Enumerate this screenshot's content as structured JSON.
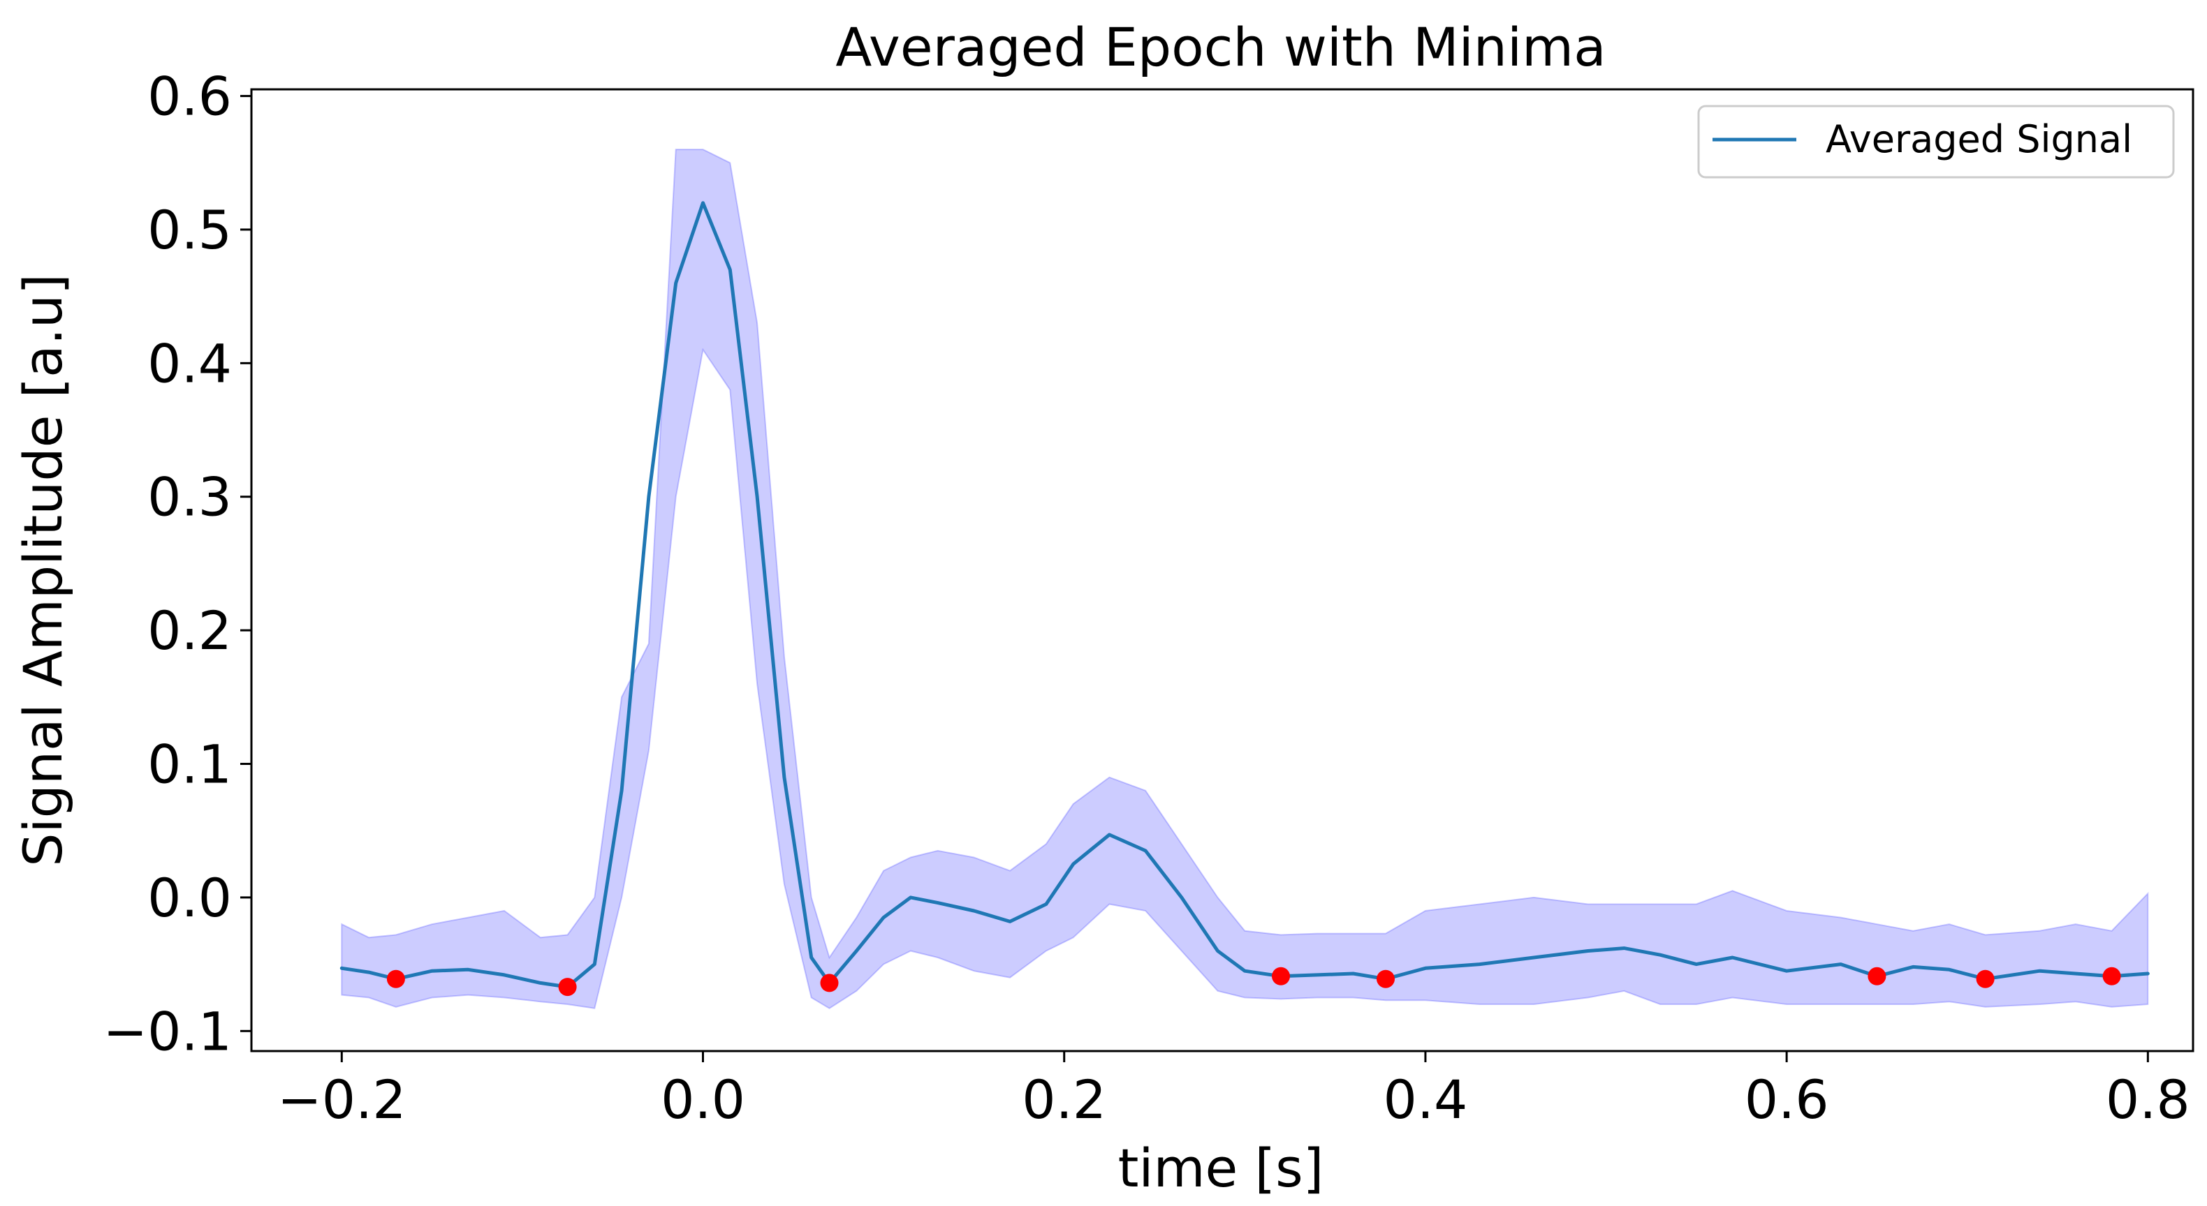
{
  "chart_data": {
    "type": "line",
    "title": "Averaged Epoch with Minima",
    "xlabel": "time [s]",
    "ylabel": "Signal Amplitude [a.u]",
    "xlim": [
      -0.25,
      0.825
    ],
    "ylim": [
      -0.115,
      0.605
    ],
    "xticks": [
      -0.2,
      0.0,
      0.2,
      0.4,
      0.6,
      0.8
    ],
    "xtick_labels": [
      "−0.2",
      "0.0",
      "0.2",
      "0.4",
      "0.6",
      "0.8"
    ],
    "yticks": [
      -0.1,
      0.0,
      0.1,
      0.2,
      0.3,
      0.4,
      0.5,
      0.6
    ],
    "ytick_labels": [
      "−0.1",
      "0.0",
      "0.1",
      "0.2",
      "0.3",
      "0.4",
      "0.5",
      "0.6"
    ],
    "grid": false,
    "legend": {
      "placement": "top-right",
      "entries": [
        {
          "label": "Averaged Signal",
          "color": "#1f77b4"
        }
      ]
    },
    "colors": {
      "line": "#1f77b4",
      "band_fill": "#0000ff",
      "band_opacity": 0.2,
      "minima": "#ff0000"
    },
    "series": [
      {
        "name": "Averaged Signal",
        "x": [
          -0.2,
          -0.185,
          -0.17,
          -0.15,
          -0.13,
          -0.11,
          -0.09,
          -0.075,
          -0.06,
          -0.045,
          -0.03,
          -0.015,
          0.0,
          0.015,
          0.03,
          0.045,
          0.06,
          0.07,
          0.085,
          0.1,
          0.115,
          0.13,
          0.15,
          0.17,
          0.19,
          0.205,
          0.225,
          0.245,
          0.265,
          0.285,
          0.3,
          0.32,
          0.34,
          0.36,
          0.378,
          0.4,
          0.43,
          0.46,
          0.49,
          0.51,
          0.53,
          0.55,
          0.57,
          0.6,
          0.63,
          0.65,
          0.67,
          0.69,
          0.71,
          0.74,
          0.76,
          0.78,
          0.8
        ],
        "y": [
          -0.053,
          -0.056,
          -0.061,
          -0.055,
          -0.054,
          -0.058,
          -0.064,
          -0.067,
          -0.05,
          0.08,
          0.3,
          0.46,
          0.52,
          0.47,
          0.3,
          0.09,
          -0.045,
          -0.064,
          -0.04,
          -0.015,
          0.0,
          -0.004,
          -0.01,
          -0.018,
          -0.005,
          0.025,
          0.047,
          0.035,
          0.0,
          -0.04,
          -0.055,
          -0.059,
          -0.058,
          -0.057,
          -0.061,
          -0.053,
          -0.05,
          -0.045,
          -0.04,
          -0.038,
          -0.043,
          -0.05,
          -0.045,
          -0.055,
          -0.05,
          -0.059,
          -0.052,
          -0.054,
          -0.061,
          -0.055,
          -0.057,
          -0.059,
          -0.057
        ],
        "band_upper": [
          -0.02,
          -0.03,
          -0.028,
          -0.02,
          -0.015,
          -0.01,
          -0.03,
          -0.028,
          0.0,
          0.15,
          0.19,
          0.56,
          0.56,
          0.55,
          0.43,
          0.18,
          0.0,
          -0.045,
          -0.015,
          0.02,
          0.03,
          0.035,
          0.03,
          0.02,
          0.04,
          0.07,
          0.09,
          0.08,
          0.04,
          0.0,
          -0.025,
          -0.028,
          -0.027,
          -0.027,
          -0.027,
          -0.01,
          -0.005,
          0.0,
          -0.005,
          -0.005,
          -0.005,
          -0.005,
          0.005,
          -0.01,
          -0.015,
          -0.02,
          -0.025,
          -0.02,
          -0.028,
          -0.025,
          -0.02,
          -0.025,
          0.003
        ],
        "band_lower": [
          -0.073,
          -0.075,
          -0.082,
          -0.075,
          -0.073,
          -0.075,
          -0.078,
          -0.08,
          -0.083,
          0.0,
          0.11,
          0.3,
          0.41,
          0.38,
          0.16,
          0.01,
          -0.075,
          -0.083,
          -0.07,
          -0.05,
          -0.04,
          -0.045,
          -0.055,
          -0.06,
          -0.04,
          -0.03,
          -0.005,
          -0.01,
          -0.04,
          -0.07,
          -0.075,
          -0.076,
          -0.075,
          -0.075,
          -0.077,
          -0.077,
          -0.08,
          -0.08,
          -0.075,
          -0.07,
          -0.08,
          -0.08,
          -0.075,
          -0.08,
          -0.08,
          -0.08,
          -0.08,
          -0.078,
          -0.082,
          -0.08,
          -0.078,
          -0.082,
          -0.08
        ]
      }
    ],
    "minima": {
      "x": [
        -0.17,
        -0.075,
        0.07,
        0.32,
        0.378,
        0.65,
        0.71,
        0.78
      ],
      "y": [
        -0.061,
        -0.067,
        -0.064,
        -0.059,
        -0.061,
        -0.059,
        -0.061,
        -0.059
      ]
    }
  }
}
